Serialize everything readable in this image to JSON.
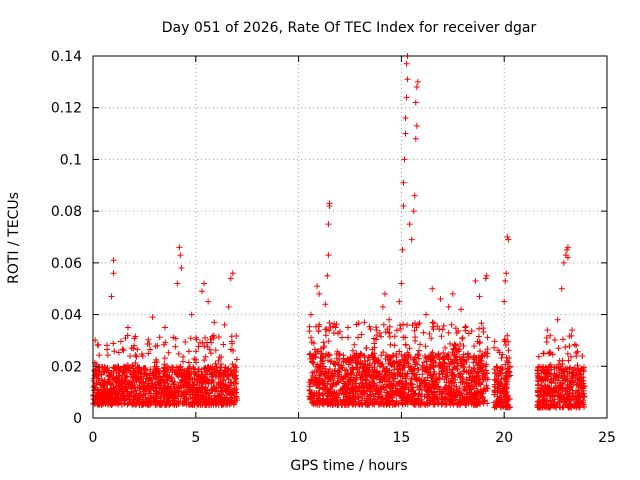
{
  "chart_data": {
    "type": "scatter",
    "title": "Day 051 of 2026, Rate Of TEC Index for receiver dgar",
    "xlabel": "GPS time / hours",
    "ylabel": "ROTI / TECUs",
    "xlim": [
      0,
      25
    ],
    "ylim": [
      0,
      0.14
    ],
    "x_ticks": [
      0,
      5,
      10,
      15,
      20,
      25
    ],
    "x_tick_labels": [
      "0",
      "5",
      "10",
      "15",
      "20",
      "25"
    ],
    "y_ticks": [
      0,
      0.02,
      0.04,
      0.06,
      0.08,
      0.1,
      0.12,
      0.14
    ],
    "y_tick_labels": [
      "0",
      "0.02",
      "0.04",
      "0.06",
      "0.08",
      "0.1",
      "0.12",
      "0.14"
    ],
    "grid": true,
    "marker": "+",
    "series": [
      {
        "name": "ROTI",
        "color": "#ff0000",
        "segments": [
          {
            "x_start": 0.0,
            "x_end": 7.0,
            "typical_min": 0.005,
            "typical_max": 0.02
          },
          {
            "x_start": 10.5,
            "x_end": 19.2,
            "typical_min": 0.005,
            "typical_max": 0.025
          },
          {
            "x_start": 19.5,
            "x_end": 20.3,
            "typical_min": 0.004,
            "typical_max": 0.02
          },
          {
            "x_start": 21.6,
            "x_end": 23.9,
            "typical_min": 0.004,
            "typical_max": 0.02
          }
        ],
        "points": [
          [
            1.0,
            0.061
          ],
          [
            1.0,
            0.056
          ],
          [
            0.9,
            0.047
          ],
          [
            1.7,
            0.035
          ],
          [
            2.0,
            0.028
          ],
          [
            2.9,
            0.039
          ],
          [
            3.5,
            0.035
          ],
          [
            4.1,
            0.052
          ],
          [
            4.2,
            0.066
          ],
          [
            4.25,
            0.063
          ],
          [
            4.3,
            0.058
          ],
          [
            4.8,
            0.04
          ],
          [
            5.3,
            0.049
          ],
          [
            5.4,
            0.052
          ],
          [
            5.6,
            0.045
          ],
          [
            5.9,
            0.037
          ],
          [
            6.4,
            0.036
          ],
          [
            6.6,
            0.043
          ],
          [
            6.7,
            0.054
          ],
          [
            6.8,
            0.056
          ],
          [
            10.6,
            0.04
          ],
          [
            10.9,
            0.051
          ],
          [
            11.0,
            0.048
          ],
          [
            11.3,
            0.044
          ],
          [
            11.4,
            0.055
          ],
          [
            11.45,
            0.063
          ],
          [
            11.5,
            0.083
          ],
          [
            11.5,
            0.082
          ],
          [
            11.45,
            0.075
          ],
          [
            11.8,
            0.035
          ],
          [
            12.4,
            0.035
          ],
          [
            13.2,
            0.037
          ],
          [
            13.8,
            0.034
          ],
          [
            14.1,
            0.043
          ],
          [
            14.2,
            0.048
          ],
          [
            14.4,
            0.038
          ],
          [
            14.9,
            0.045
          ],
          [
            15.0,
            0.052
          ],
          [
            15.05,
            0.065
          ],
          [
            15.1,
            0.082
          ],
          [
            15.1,
            0.091
          ],
          [
            15.15,
            0.1
          ],
          [
            15.2,
            0.11
          ],
          [
            15.2,
            0.116
          ],
          [
            15.25,
            0.124
          ],
          [
            15.3,
            0.131
          ],
          [
            15.25,
            0.137
          ],
          [
            15.3,
            0.14
          ],
          [
            15.4,
            0.075
          ],
          [
            15.5,
            0.069
          ],
          [
            15.6,
            0.08
          ],
          [
            15.65,
            0.086
          ],
          [
            15.7,
            0.108
          ],
          [
            15.75,
            0.113
          ],
          [
            15.7,
            0.122
          ],
          [
            15.75,
            0.128
          ],
          [
            15.8,
            0.13
          ],
          [
            16.2,
            0.04
          ],
          [
            16.5,
            0.05
          ],
          [
            16.9,
            0.046
          ],
          [
            17.3,
            0.043
          ],
          [
            17.5,
            0.048
          ],
          [
            17.9,
            0.042
          ],
          [
            18.1,
            0.035
          ],
          [
            18.6,
            0.053
          ],
          [
            18.8,
            0.047
          ],
          [
            19.1,
            0.054
          ],
          [
            19.15,
            0.055
          ],
          [
            20.0,
            0.045
          ],
          [
            20.05,
            0.053
          ],
          [
            20.1,
            0.056
          ],
          [
            20.2,
            0.069
          ],
          [
            20.15,
            0.07
          ],
          [
            21.9,
            0.025
          ],
          [
            22.1,
            0.034
          ],
          [
            22.6,
            0.038
          ],
          [
            22.8,
            0.05
          ],
          [
            22.9,
            0.06
          ],
          [
            23.0,
            0.063
          ],
          [
            23.05,
            0.065
          ],
          [
            23.1,
            0.062
          ],
          [
            23.1,
            0.066
          ],
          [
            23.3,
            0.034
          ],
          [
            23.5,
            0.028
          ],
          [
            23.8,
            0.024
          ]
        ]
      }
    ]
  }
}
